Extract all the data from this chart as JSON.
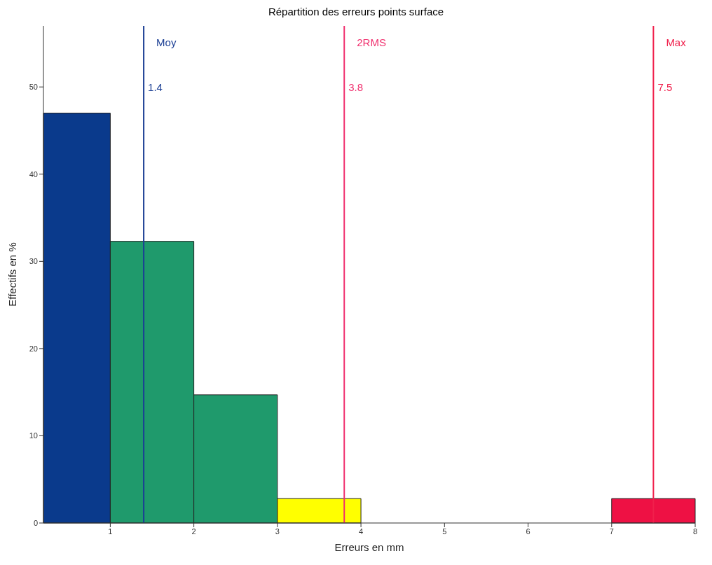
{
  "chart_data": {
    "type": "histogram",
    "title": "Répartition des erreurs points surface",
    "xlabel": "Erreurs en mm",
    "ylabel": "Effectifs en %",
    "bins": [
      0.2,
      1,
      2,
      3,
      4,
      7,
      8
    ],
    "values": [
      47,
      32.3,
      14.7,
      2.8,
      0,
      2.8
    ],
    "colors": [
      "#0a3a8c",
      "#1f9a6c",
      "#1f9a6c",
      "#ffff00",
      null,
      "#ee1144"
    ],
    "xlim": [
      0.2,
      8
    ],
    "xticks": [
      1,
      2,
      3,
      4,
      5,
      6,
      7,
      8
    ],
    "ylim": [
      0,
      57
    ],
    "yticks": [
      0,
      10,
      20,
      30,
      40,
      50
    ],
    "grid": false,
    "ref_lines": [
      {
        "axis": "x",
        "value": 1.4,
        "label": "Moy",
        "color": "#1c3f94"
      },
      {
        "axis": "x",
        "value": 3.8,
        "label": "2RMS",
        "color": "#f0306e"
      },
      {
        "axis": "x",
        "value": 7.5,
        "label": "Max",
        "color": "#f0204c"
      }
    ],
    "annotations": [
      {
        "text": "1.4",
        "x": 1.4,
        "y": 50
      },
      {
        "text": "3.8",
        "x": 3.8,
        "y": 50
      },
      {
        "text": "7.5",
        "x": 7.5,
        "y": 50
      }
    ]
  }
}
